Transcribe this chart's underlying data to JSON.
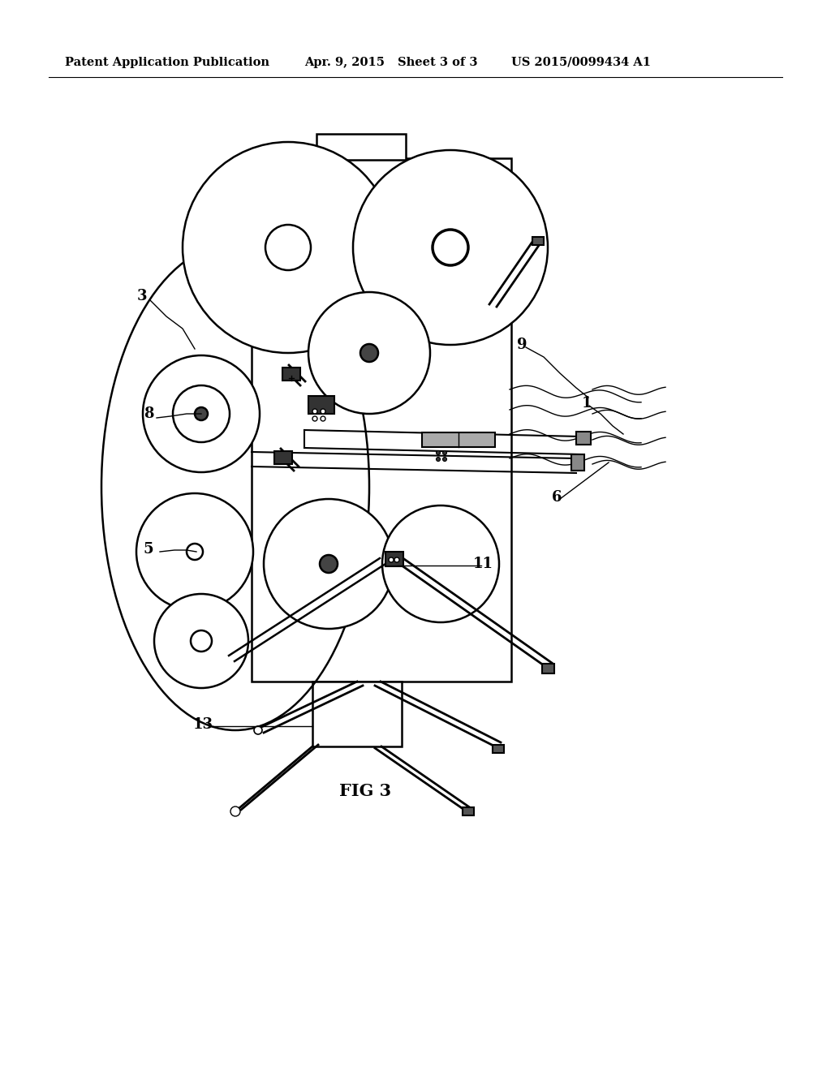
{
  "background_color": "#ffffff",
  "line_color": "#000000",
  "header_text": "Patent Application Publication",
  "header_date": "Apr. 9, 2015",
  "header_sheet": "Sheet 3 of 3",
  "header_patent": "US 2015/0099434 A1",
  "fig_label": "FIG 3",
  "lw_main": 1.8,
  "lw_thin": 1.0,
  "lw_thick": 2.5
}
